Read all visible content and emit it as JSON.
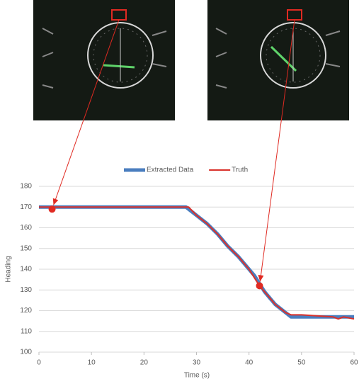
{
  "chart_data": {
    "type": "line",
    "x_label": "Time (s)",
    "y_label": "Heading",
    "xlim": [
      0,
      60
    ],
    "ylim": [
      100,
      180
    ],
    "xticks": [
      0,
      10,
      20,
      30,
      40,
      50,
      60
    ],
    "yticks": [
      100,
      110,
      120,
      130,
      140,
      150,
      160,
      170,
      180
    ],
    "grid": true,
    "legend": "top",
    "series": [
      {
        "name": "Extracted Data",
        "color": "#4a7ebf",
        "x": [
          0,
          28,
          29,
          30,
          32,
          34,
          36,
          38,
          40,
          41,
          42,
          43,
          44,
          45,
          46,
          47,
          48,
          50,
          55,
          60
        ],
        "values": [
          170,
          170,
          168,
          166,
          162,
          157,
          151,
          146,
          140,
          137,
          133,
          129,
          126,
          123,
          121,
          119,
          117,
          117,
          117,
          117
        ]
      },
      {
        "name": "Truth",
        "color": "#d9312b",
        "x": [
          0,
          28.5,
          30,
          32,
          34,
          36,
          38,
          40,
          41,
          42,
          43,
          44,
          45,
          46,
          47,
          48,
          50,
          56,
          57,
          58,
          60
        ],
        "values": [
          170,
          170,
          166,
          162,
          157,
          151,
          146,
          140,
          136,
          132,
          129,
          126,
          123,
          121,
          119,
          118,
          118,
          117,
          116,
          117,
          116
        ]
      }
    ],
    "highlight_points": [
      {
        "x": 2.5,
        "y": 169
      },
      {
        "x": 42,
        "y": 132
      }
    ],
    "highlight_color": "#e02a22"
  }
}
